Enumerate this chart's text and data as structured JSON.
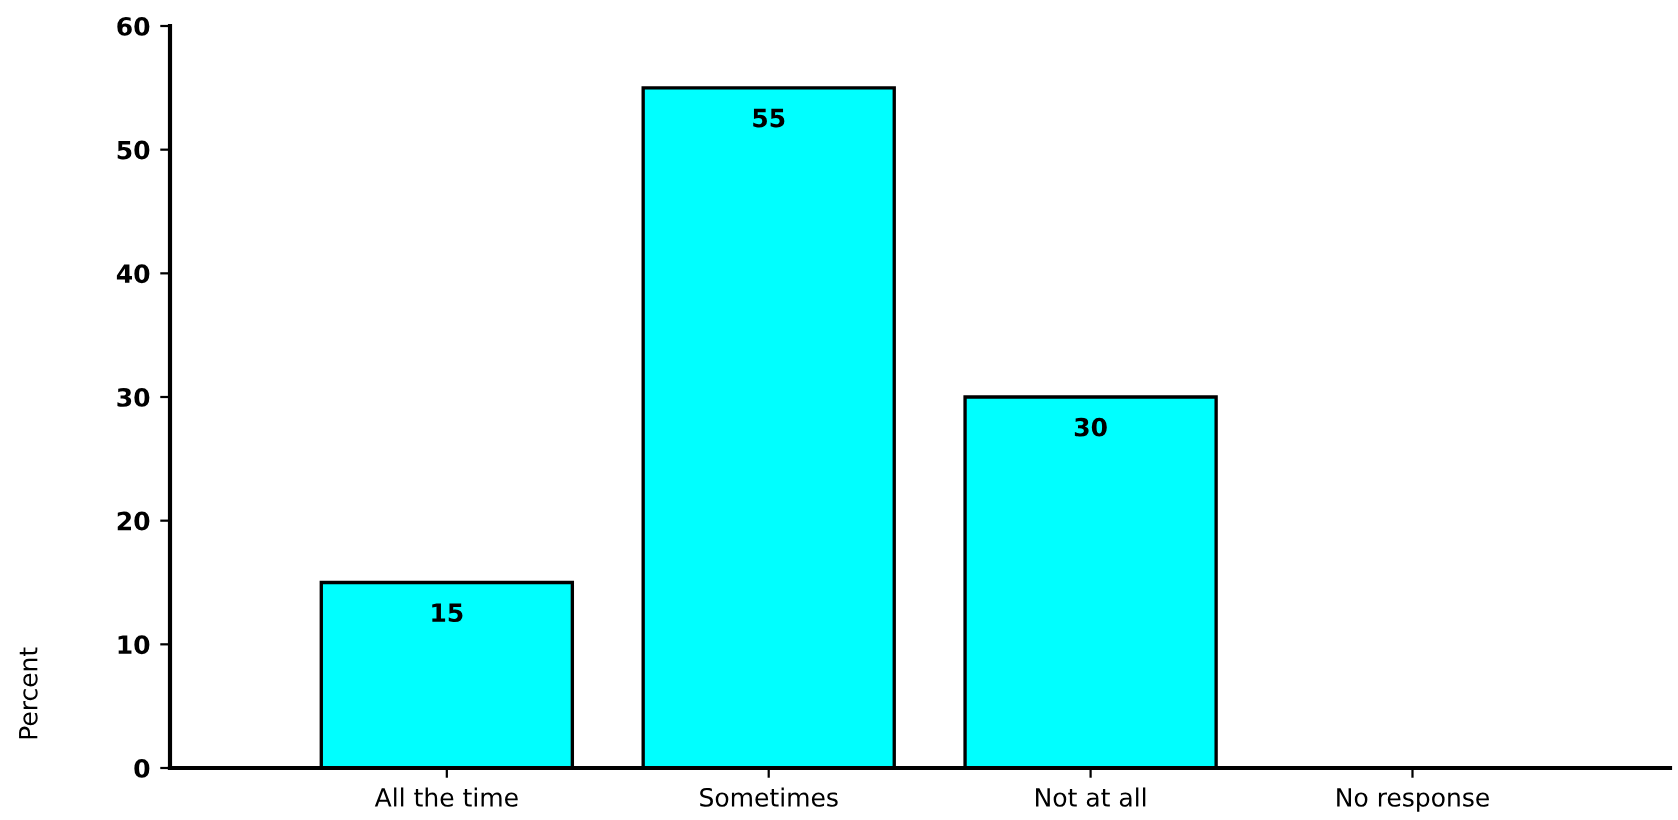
{
  "chart_data": {
    "type": "bar",
    "ylabel": "Percent",
    "categories": [
      "All the time",
      "Sometimes",
      "Not at all",
      "No response"
    ],
    "values": [
      15,
      55,
      30,
      null
    ],
    "value_labels": [
      "15",
      "55",
      "30",
      null
    ],
    "color": "#00ffff",
    "ylim": [
      0,
      60
    ],
    "yticks": [
      0,
      10,
      20,
      30,
      40,
      50,
      60
    ],
    "grid": false,
    "legend": false
  }
}
